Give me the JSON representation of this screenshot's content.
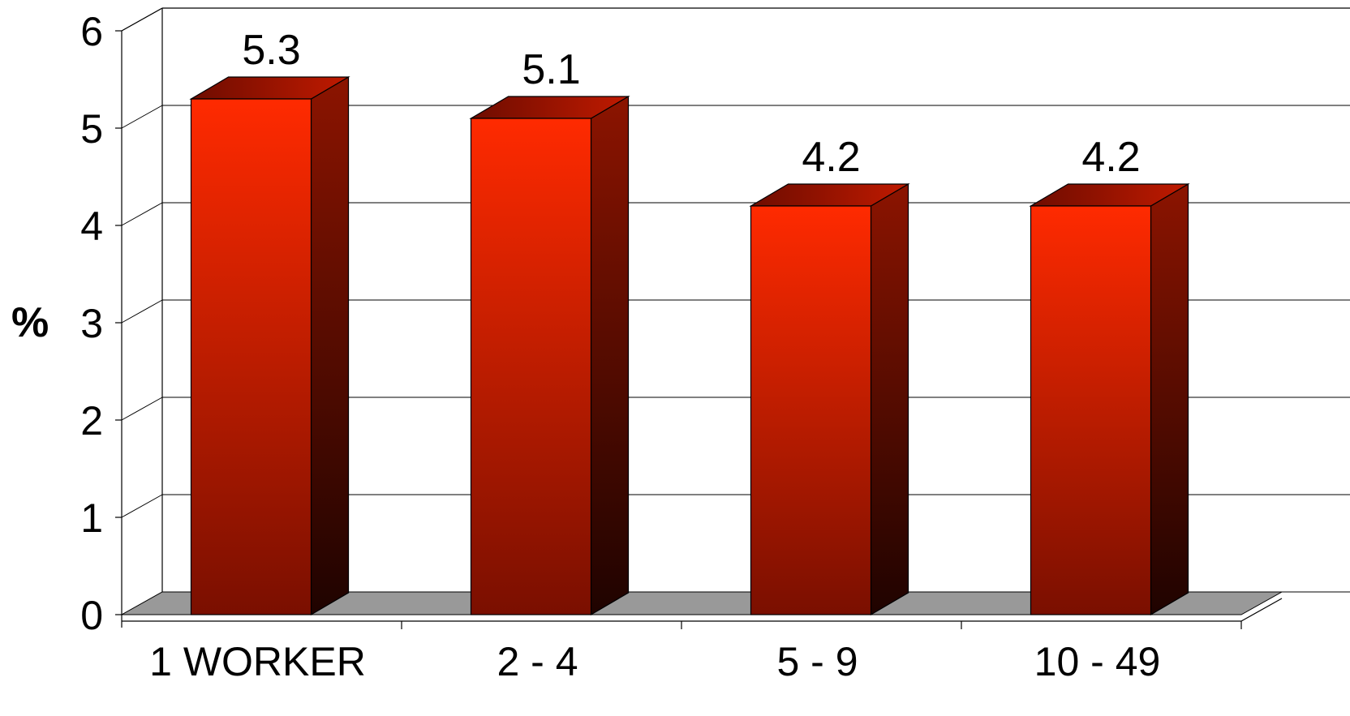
{
  "chart_data": {
    "type": "bar",
    "categories": [
      "1 WORKER",
      "2 - 4",
      "5 - 9",
      "10 - 49"
    ],
    "values": [
      5.3,
      5.1,
      4.2,
      4.2
    ],
    "data_labels": [
      "5.3",
      "5.1",
      "4.2",
      "4.2"
    ],
    "ylabel": "%",
    "ylim": [
      0,
      6
    ],
    "yticks": [
      "0",
      "1",
      "2",
      "3",
      "4",
      "5",
      "6"
    ],
    "grid": true,
    "style": "3d",
    "colors": {
      "bar_light": "#ff2a00",
      "bar_dark": "#7a0f00",
      "side_light": "#8c1400",
      "side_dark": "#1f0300",
      "floor": "#999999"
    }
  }
}
